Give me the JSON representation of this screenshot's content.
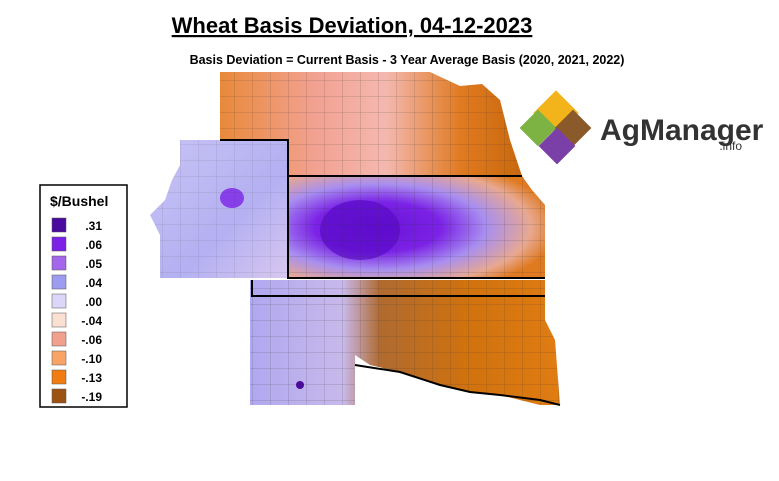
{
  "header": {
    "title": "Wheat Basis Deviation, 04-12-2023",
    "subtitle": "Basis Deviation = Current Basis - 3 Year Average Basis (2020, 2021, 2022)"
  },
  "logo": {
    "name": "AgManager",
    "suffix": ".info"
  },
  "legend": {
    "title": "$/Bushel",
    "items": [
      {
        "label": ".31",
        "color": "#4a0a9e"
      },
      {
        "label": ".06",
        "color": "#7b22e6"
      },
      {
        "label": ".05",
        "color": "#a466ea"
      },
      {
        "label": ".04",
        "color": "#9c9cf0"
      },
      {
        "label": ".00",
        "color": "#dcd6f8"
      },
      {
        "label": "-.04",
        "color": "#fbdfd0"
      },
      {
        "label": "-.06",
        "color": "#f2a08e"
      },
      {
        "label": "-.10",
        "color": "#f8a466"
      },
      {
        "label": "-.13",
        "color": "#f07c12"
      },
      {
        "label": "-.19",
        "color": "#9c5212"
      }
    ]
  }
}
